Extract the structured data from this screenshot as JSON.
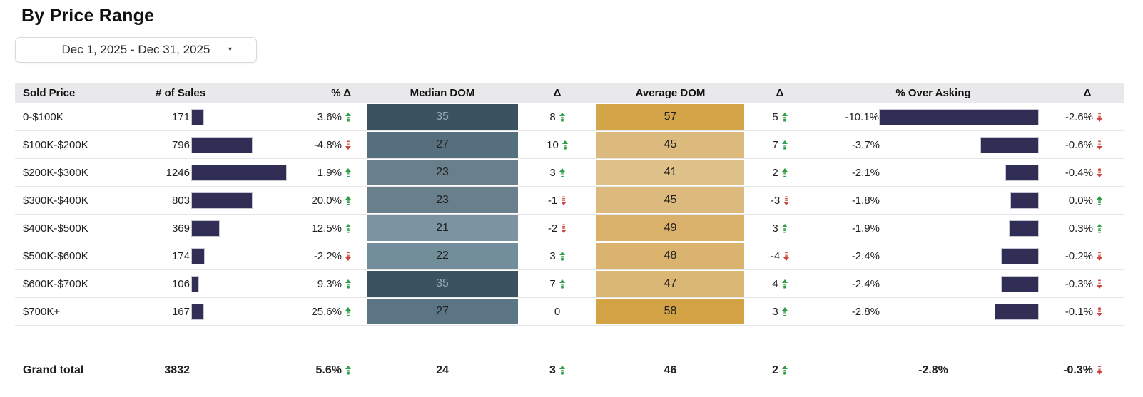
{
  "title": "By Price Range",
  "date_filter": {
    "label": "Dec 1, 2025 - Dec 31, 2025",
    "caret": "▾"
  },
  "colors": {
    "bar_navy": "#312e56",
    "up_green": "#2e9e47",
    "down_red": "#d2413b",
    "header_bg": "#e9e9ec"
  },
  "chart_data": {
    "type": "table",
    "title": "By Price Range",
    "columns": [
      "Sold Price",
      "# of Sales",
      "% Δ",
      "Median DOM",
      "Δ",
      "Average DOM",
      "Δ",
      "% Over Asking",
      "Δ"
    ],
    "rows": [
      {
        "sold_price": "0-$100K",
        "sales": 171,
        "pct_delta": "3.6%",
        "pct_dir": "up",
        "median_dom": 35,
        "median_bg": "#3a5260",
        "median_fg": "#9aa8b1",
        "median_delta": "8",
        "median_dir": "up",
        "avg_dom": 57,
        "avg_bg": "#d4a449",
        "avg_delta": "5",
        "avg_dir": "up",
        "over_asking": "-10.1%",
        "over_asking_pct": 10.1,
        "oa_delta": "-2.6%",
        "oa_dir": "down"
      },
      {
        "sold_price": "$100K-$200K",
        "sales": 796,
        "pct_delta": "-4.8%",
        "pct_dir": "down",
        "median_dom": 27,
        "median_bg": "#566f7e",
        "median_fg": "",
        "median_delta": "10",
        "median_dir": "up",
        "avg_dom": 45,
        "avg_bg": "#dcba7d",
        "avg_delta": "7",
        "avg_dir": "up",
        "over_asking": "-3.7%",
        "over_asking_pct": 3.7,
        "oa_delta": "-0.6%",
        "oa_dir": "down"
      },
      {
        "sold_price": "$200K-$300K",
        "sales": 1246,
        "pct_delta": "1.9%",
        "pct_dir": "up",
        "median_dom": 23,
        "median_bg": "#697f8c",
        "median_fg": "",
        "median_delta": "3",
        "median_dir": "up",
        "avg_dom": 41,
        "avg_bg": "#dfc28a",
        "avg_delta": "2",
        "avg_dir": "up",
        "over_asking": "-2.1%",
        "over_asking_pct": 2.1,
        "oa_delta": "-0.4%",
        "oa_dir": "down"
      },
      {
        "sold_price": "$300K-$400K",
        "sales": 803,
        "pct_delta": "20.0%",
        "pct_dir": "up",
        "median_dom": 23,
        "median_bg": "#697f8c",
        "median_fg": "",
        "median_delta": "-1",
        "median_dir": "down",
        "avg_dom": 45,
        "avg_bg": "#dcba7d",
        "avg_delta": "-3",
        "avg_dir": "down",
        "over_asking": "-1.8%",
        "over_asking_pct": 1.8,
        "oa_delta": "0.0%",
        "oa_dir": "up"
      },
      {
        "sold_price": "$400K-$500K",
        "sales": 369,
        "pct_delta": "12.5%",
        "pct_dir": "up",
        "median_dom": 21,
        "median_bg": "#7c94a1",
        "median_fg": "",
        "median_delta": "-2",
        "median_dir": "down",
        "avg_dom": 49,
        "avg_bg": "#d9b16a",
        "avg_delta": "3",
        "avg_dir": "up",
        "over_asking": "-1.9%",
        "over_asking_pct": 1.9,
        "oa_delta": "0.3%",
        "oa_dir": "up"
      },
      {
        "sold_price": "$500K-$600K",
        "sales": 174,
        "pct_delta": "-2.2%",
        "pct_dir": "down",
        "median_dom": 22,
        "median_bg": "#738e9b",
        "median_fg": "",
        "median_delta": "3",
        "median_dir": "up",
        "avg_dom": 48,
        "avg_bg": "#dab46f",
        "avg_delta": "-4",
        "avg_dir": "down",
        "over_asking": "-2.4%",
        "over_asking_pct": 2.4,
        "oa_delta": "-0.2%",
        "oa_dir": "down"
      },
      {
        "sold_price": "$600K-$700K",
        "sales": 106,
        "pct_delta": "9.3%",
        "pct_dir": "up",
        "median_dom": 35,
        "median_bg": "#3a5260",
        "median_fg": "#9aa8b1",
        "median_delta": "7",
        "median_dir": "up",
        "avg_dom": 47,
        "avg_bg": "#dbb775",
        "avg_delta": "4",
        "avg_dir": "up",
        "over_asking": "-2.4%",
        "over_asking_pct": 2.4,
        "oa_delta": "-0.3%",
        "oa_dir": "down"
      },
      {
        "sold_price": "$700K+",
        "sales": 167,
        "pct_delta": "25.6%",
        "pct_dir": "up",
        "median_dom": 27,
        "median_bg": "#5b7585",
        "median_fg": "",
        "median_delta": "0",
        "median_dir": "none",
        "avg_dom": 58,
        "avg_bg": "#d3a245",
        "avg_delta": "3",
        "avg_dir": "up",
        "over_asking": "-2.8%",
        "over_asking_pct": 2.8,
        "oa_delta": "-0.1%",
        "oa_dir": "down"
      }
    ],
    "grand_total": {
      "sold_price": "Grand total",
      "sales": 3832,
      "pct_delta": "5.6%",
      "pct_dir": "up",
      "median_dom": 24,
      "median_delta": "3",
      "median_dir": "up",
      "avg_dom": 46,
      "avg_delta": "2",
      "avg_dir": "up",
      "over_asking": "-2.8%",
      "over_asking_pct": 2.8,
      "oa_delta": "-0.3%",
      "oa_dir": "down"
    }
  }
}
